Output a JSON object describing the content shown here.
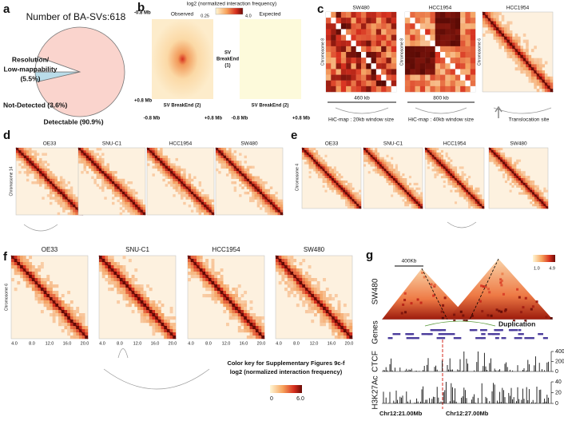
{
  "panels": {
    "a": {
      "letter": "a",
      "title": "Number of BA-SVs:618",
      "pie": {
        "type": "pie",
        "values": [
          90.9,
          3.6,
          5.5
        ],
        "colors": [
          "#fad4cd",
          "#b9dce9",
          "#ffffff"
        ],
        "label_colors": [
          "#e07b5a",
          "#2f78bd",
          "#8c8c8c"
        ],
        "labels": [
          [
            "Detectable (90.9%)"
          ],
          [
            "Not-Detected (3.6%)"
          ],
          [
            "Resolution/",
            "Low-mappability",
            "(5.5%)"
          ]
        ]
      }
    },
    "b": {
      "letter": "b",
      "colorbar_title": "log2 (normalized interaction frequency)",
      "colorbar_min": "0.25",
      "colorbar_max": "4.0",
      "maps": [
        "Observed",
        "Expected"
      ],
      "y_top": "-0.8 Mb",
      "y_bottom": "+0.8 Mb",
      "y_label": [
        "SV",
        "BreakEnd",
        "(1)"
      ],
      "x_label": "SV BreakEnd (2)",
      "x_left": "-0.8 Mb",
      "x_right": "+0.8 Mb"
    },
    "c": {
      "letter": "c",
      "maps": [
        {
          "title": "SW480",
          "ylabel": "Chromosome 8"
        },
        {
          "title": "HCC1954",
          "ylabel": "Chromosome 8"
        },
        {
          "title": "HCC1954",
          "ylabel": "Chromosome 6"
        }
      ],
      "spans": [
        "460 kb",
        "800 kb"
      ],
      "captions": [
        "HiC-map : 20kb window size",
        "HiC-map : 40kb window size",
        "Translocation site"
      ]
    },
    "d": {
      "letter": "d",
      "ylabel": "Chromosome 14",
      "maps": [
        "OE33",
        "SNU-C1",
        "HCC1954",
        "SW480"
      ]
    },
    "e": {
      "letter": "e",
      "ylabel": "Chromosome 4",
      "maps": [
        "OE33",
        "SNU-C1",
        "HCC1954",
        "SW480"
      ]
    },
    "f": {
      "letter": "f",
      "ylabel": "Chromosome 6",
      "maps": [
        "OE33",
        "SNU-C1",
        "HCC1954",
        "SW480"
      ],
      "xticks": [
        "4.0",
        "8.0",
        "12.0",
        "16.0",
        "20.0"
      ],
      "key_title": "Color key for Supplementary Figures 9c-f",
      "key_subtitle": "log2 (normalized interaction frequency)",
      "key_min": "0",
      "key_max": "6.0"
    },
    "g": {
      "letter": "g",
      "scale": "400Kb",
      "sample": "SW480",
      "colorbar_min": "1.0",
      "colorbar_max": "4.9",
      "tracks": [
        "Genes",
        "CTCF",
        "H3K27Ac"
      ],
      "event": "Duplication",
      "ctcf_ticks": [
        "400",
        "200",
        "0"
      ],
      "h3k27ac_ticks": [
        "40",
        "20",
        "0"
      ],
      "coords": [
        "Chr12:21.00Mb",
        "Chr12:27.00Mb"
      ]
    }
  }
}
